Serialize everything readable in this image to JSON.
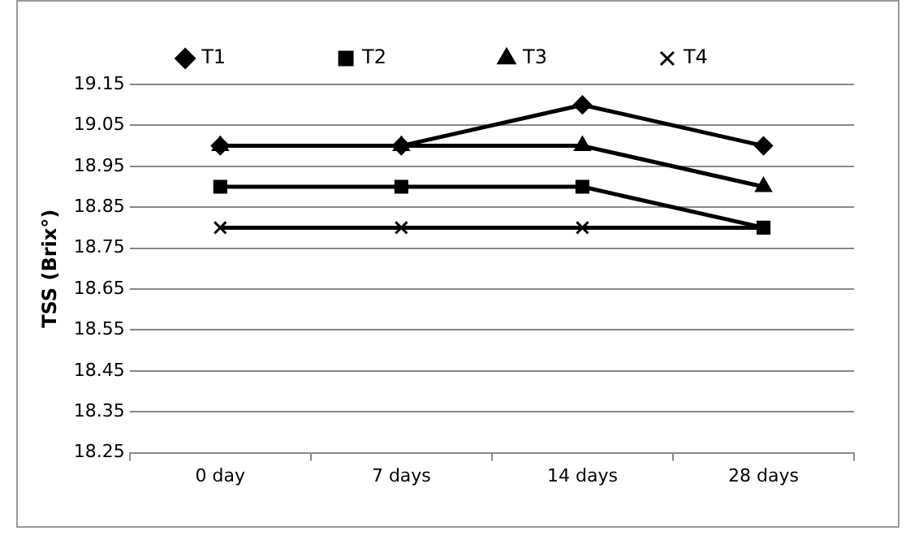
{
  "chart_data": {
    "type": "line",
    "ylabel": "TSS (Brix°)",
    "categories": [
      "0 day",
      "7 days",
      "14 days",
      "28 days"
    ],
    "series": [
      {
        "name": "T1",
        "color": "#000000",
        "marker": "diamond",
        "values": [
          19.0,
          19.0,
          19.1,
          19.0
        ]
      },
      {
        "name": "T2",
        "color": "#000000",
        "marker": "square",
        "values": [
          18.9,
          18.9,
          18.9,
          18.8
        ]
      },
      {
        "name": "T3",
        "color": "#000000",
        "marker": "triangle",
        "values": [
          19.0,
          19.0,
          19.0,
          18.9
        ]
      },
      {
        "name": "T4",
        "color": "#000000",
        "marker": "cross",
        "values": [
          18.8,
          18.8,
          18.8,
          18.8
        ]
      }
    ],
    "ylim": [
      18.25,
      19.15
    ],
    "yticks": [
      {
        "value": 18.25,
        "label": "18.25"
      },
      {
        "value": 18.35,
        "label": "18.35"
      },
      {
        "value": 18.45,
        "label": "18.45"
      },
      {
        "value": 18.55,
        "label": "18.55"
      },
      {
        "value": 18.65,
        "label": "18.65"
      },
      {
        "value": 18.75,
        "label": "18.75"
      },
      {
        "value": 18.85,
        "label": "18.85"
      },
      {
        "value": 18.95,
        "label": "18.95"
      },
      {
        "value": 19.05,
        "label": "19.05"
      },
      {
        "value": 19.15,
        "label": "19.15"
      }
    ],
    "grid": "y",
    "legend": "top",
    "line_style": "solid"
  }
}
